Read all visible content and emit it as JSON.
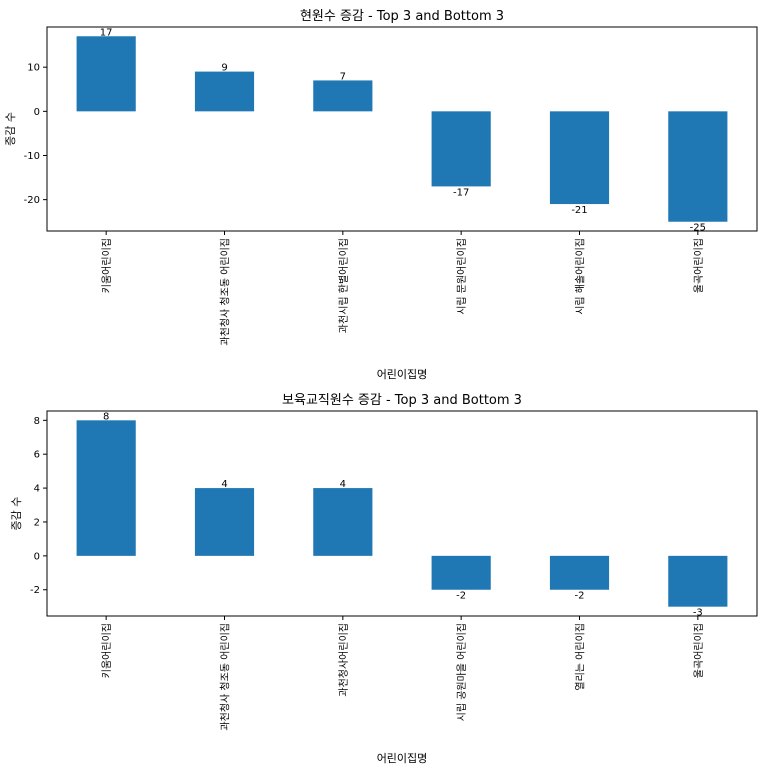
{
  "chart_data": [
    {
      "type": "bar",
      "title": "현원수 증감 - Top 3 and Bottom 3",
      "xlabel": "어린이집명",
      "ylabel": "증감 수",
      "categories": [
        "키움어린이집",
        "과천청사 청조동 어린이집",
        "과천시립 한별어린이집",
        "시립 문원어린이집",
        "시립 해솔어린이집",
        "울곡어린이집"
      ],
      "values": [
        17,
        9,
        7,
        -17,
        -21,
        -25
      ],
      "data_labels": [
        "17",
        "9",
        "7",
        "-17",
        "-21",
        "-25"
      ],
      "yticks": [
        -20,
        -10,
        0,
        10
      ],
      "ytick_labels": [
        "-20",
        "-10",
        "0",
        "10"
      ],
      "ylim": [
        -27.1,
        19.1
      ],
      "grid": false,
      "color": "#1f77b4"
    },
    {
      "type": "bar",
      "title": "보육교직원수 증감 - Top 3 and Bottom 3",
      "xlabel": "어린이집명",
      "ylabel": "증감 수",
      "categories": [
        "키움어린이집",
        "과천청사 청조동 어린이집",
        "과천청사어린이집",
        "시립 공원마을 어린이집",
        "열리는 어린이집",
        "울곡어린이집"
      ],
      "values": [
        8,
        4,
        4,
        -2,
        -2,
        -3
      ],
      "data_labels": [
        "8",
        "4",
        "4",
        "-2",
        "-2",
        "-3"
      ],
      "yticks": [
        -2,
        0,
        2,
        4,
        6,
        8
      ],
      "ytick_labels": [
        "-2",
        "0",
        "2",
        "4",
        "6",
        "8"
      ],
      "ylim": [
        -3.55,
        8.55
      ],
      "grid": false,
      "color": "#1f77b4"
    }
  ]
}
